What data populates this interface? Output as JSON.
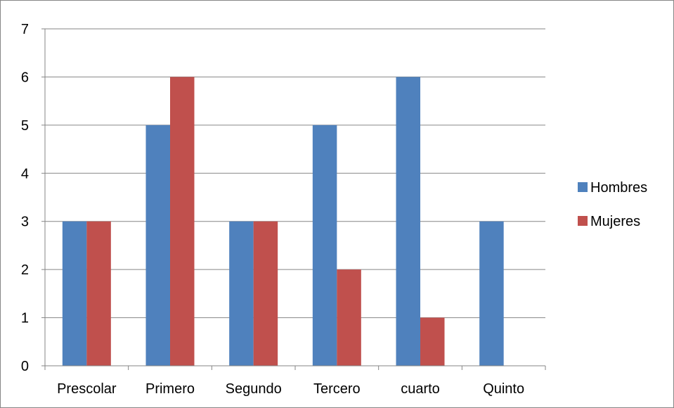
{
  "chart_data": {
    "type": "bar",
    "title": "",
    "xlabel": "",
    "ylabel": "",
    "categories": [
      "Prescolar",
      "Primero",
      "Segundo",
      "Tercero",
      "cuarto",
      "Quinto"
    ],
    "series": [
      {
        "name": "Hombres",
        "values": [
          3,
          5,
          3,
          5,
          6,
          3
        ],
        "color": "#4f81bd"
      },
      {
        "name": "Mujeres",
        "values": [
          3,
          6,
          3,
          2,
          1,
          0
        ],
        "color": "#c0504d"
      }
    ],
    "ylim": [
      0,
      7
    ],
    "yticks": [
      0,
      1,
      2,
      3,
      4,
      5,
      6,
      7
    ],
    "grid": true,
    "legend_position": "right",
    "colors": {
      "gridline": "#868686",
      "axis": "#868686",
      "frame": "#868686"
    }
  }
}
